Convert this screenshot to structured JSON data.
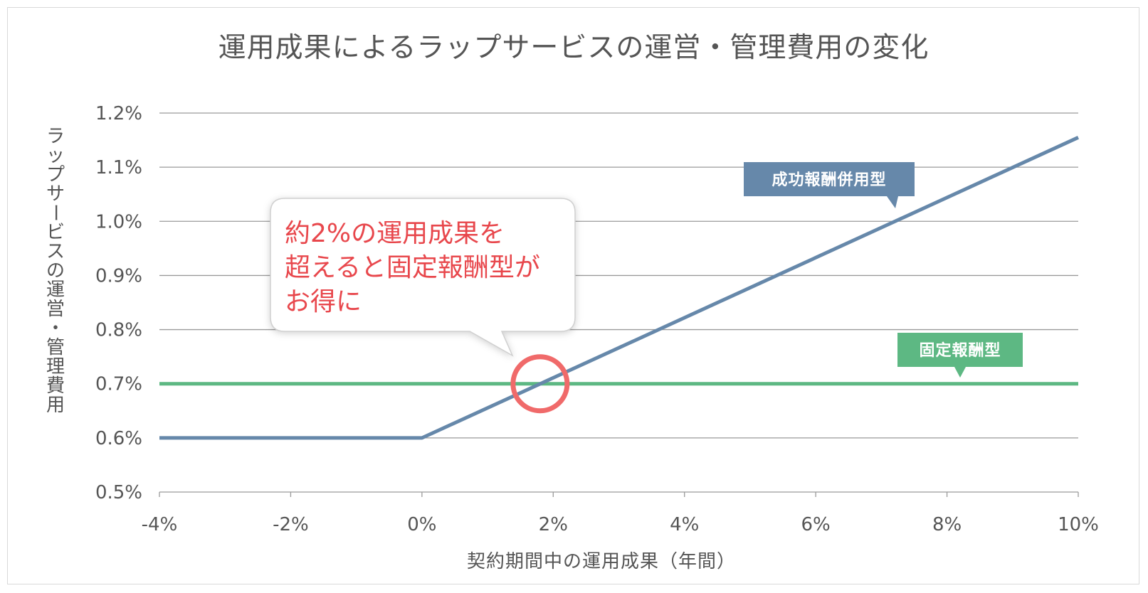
{
  "chart_data": {
    "type": "line",
    "title": "運用成果によるラップサービスの運営・管理費用の変化",
    "xlabel": "契約期間中の運用成果（年間）",
    "ylabel": "ラップサービスの運営・管理費用",
    "xlim": [
      -4,
      10
    ],
    "ylim": [
      0.5,
      1.2
    ],
    "x_ticks": [
      -4,
      -2,
      0,
      2,
      4,
      6,
      8,
      10
    ],
    "x_tick_labels": [
      "-4%",
      "-2%",
      "0%",
      "2%",
      "4%",
      "6%",
      "8%",
      "10%"
    ],
    "y_ticks": [
      0.5,
      0.6,
      0.7,
      0.8,
      0.9,
      1.0,
      1.1,
      1.2
    ],
    "y_tick_labels": [
      "0.5%",
      "0.6%",
      "0.7%",
      "0.8%",
      "0.9%",
      "1.0%",
      "1.1%",
      "1.2%"
    ],
    "grid": true,
    "series": [
      {
        "name": "成功報酬併用型",
        "color": "#6688aa",
        "x": [
          -4,
          0,
          10
        ],
        "y": [
          0.6,
          0.6,
          1.155
        ]
      },
      {
        "name": "固定報酬型",
        "color": "#5db883",
        "x": [
          -4,
          10
        ],
        "y": [
          0.7,
          0.7
        ]
      }
    ],
    "annotations": {
      "callout_lines": [
        "約2%の運用成果を",
        "超えると固定報酬型が",
        "お得に"
      ],
      "highlight_point": {
        "x": 1.8,
        "y": 0.7
      },
      "highlight_color": "#f06a6a"
    }
  }
}
